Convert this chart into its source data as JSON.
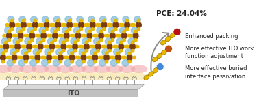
{
  "title": "PCE: 24.04%",
  "ito_label": "ITO",
  "annotations": [
    "Enhanced packing",
    "More effective ITO work\nfunction adjustment",
    "More effective buried\ninterface passivation"
  ],
  "bg_color": "#ffffff",
  "ito_top_color": "#d8d8d8",
  "ito_front_color": "#c0c0c0",
  "ito_edge_color": "#999999",
  "grid_color": "#aaaaaa",
  "brown_color": "#7B3A10",
  "blue_color": "#87BDDB",
  "yellow_color": "#E8B800",
  "pink_color": "#F0A0A0",
  "peach_color": "#F5D090",
  "cream_color": "#F8E8B0",
  "mol_yellow": "#E8B800",
  "mol_orange": "#C05010",
  "mol_red": "#BB1111",
  "mol_blue": "#4488DD",
  "arrow_color": "#888888",
  "text_color": "#222222",
  "sam_color": "#888888",
  "title_fontsize": 7.5,
  "annot_fontsize": 6.0
}
